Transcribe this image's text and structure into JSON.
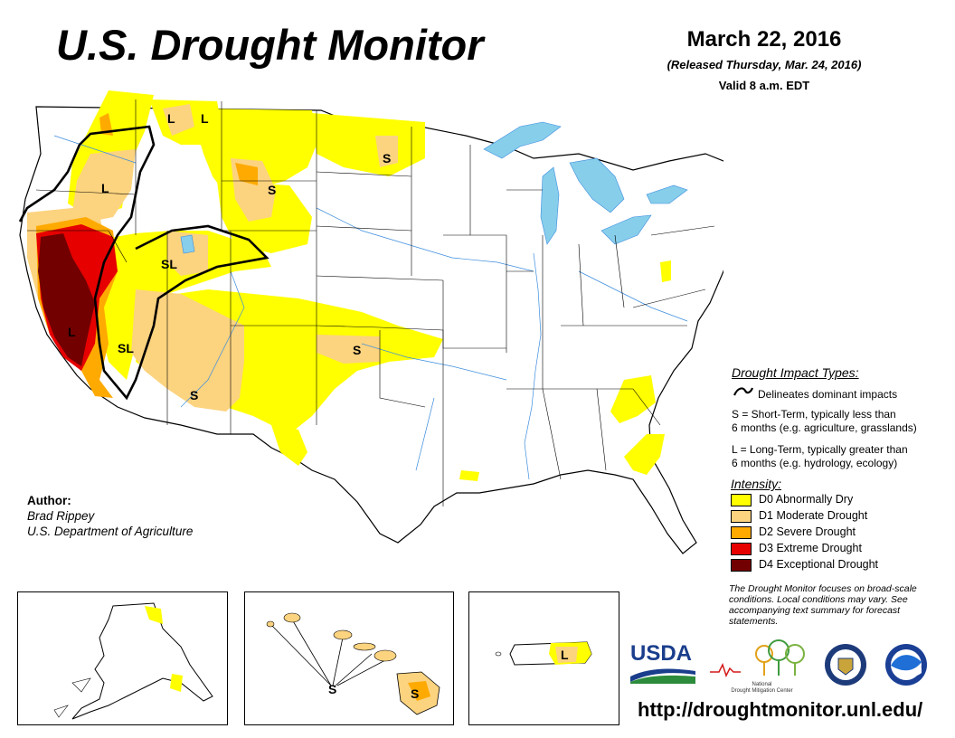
{
  "title": "U.S. Drought Monitor",
  "date": "March 22, 2016",
  "released": "(Released Thursday, Mar. 24, 2016)",
  "valid": "Valid 8 a.m. EDT",
  "impact_types": {
    "heading": "Drought Impact Types:",
    "delineates": "Delineates dominant impacts",
    "short_term_line1": "S = Short-Term, typically less than",
    "short_term_line2": "6 months (e.g. agriculture, grasslands)",
    "long_term_line1": "L = Long-Term, typically greater than",
    "long_term_line2": "6 months (e.g. hydrology, ecology)"
  },
  "intensity": {
    "heading": "Intensity:",
    "levels": [
      {
        "label": "D0 Abnormally Dry",
        "color": "#FFFF00"
      },
      {
        "label": "D1 Moderate Drought",
        "color": "#FCD37F"
      },
      {
        "label": "D2 Severe Drought",
        "color": "#FFAA00"
      },
      {
        "label": "D3 Extreme Drought",
        "color": "#E60000"
      },
      {
        "label": "D4 Exceptional Drought",
        "color": "#730000"
      }
    ]
  },
  "author": {
    "label": "Author:",
    "name": "Brad Rippey",
    "org": "U.S. Department of Agriculture"
  },
  "note": "The Drought Monitor focuses on broad-scale conditions. Local conditions may vary. See accompanying text summary for forecast statements.",
  "url": "http://droughtmonitor.unl.edu/",
  "map_labels": {
    "l_id1": "L",
    "l_id2": "L",
    "s_mt": "S",
    "s_nd": "S",
    "l_or": "L",
    "sl_ut": "SL",
    "l_ca": "L",
    "sl_ca": "SL",
    "s_az": "S",
    "s_ok": "S",
    "l_pr": "L",
    "s_hi_center": "S",
    "s_hi_big": "S"
  },
  "logos": {
    "usda": "USDA",
    "ndmc_line1": "National",
    "ndmc_line2": "Drought Mitigation Center"
  },
  "colors": {
    "water": "#87CEEB",
    "river": "#3C8DDE",
    "state_border": "#000000"
  }
}
